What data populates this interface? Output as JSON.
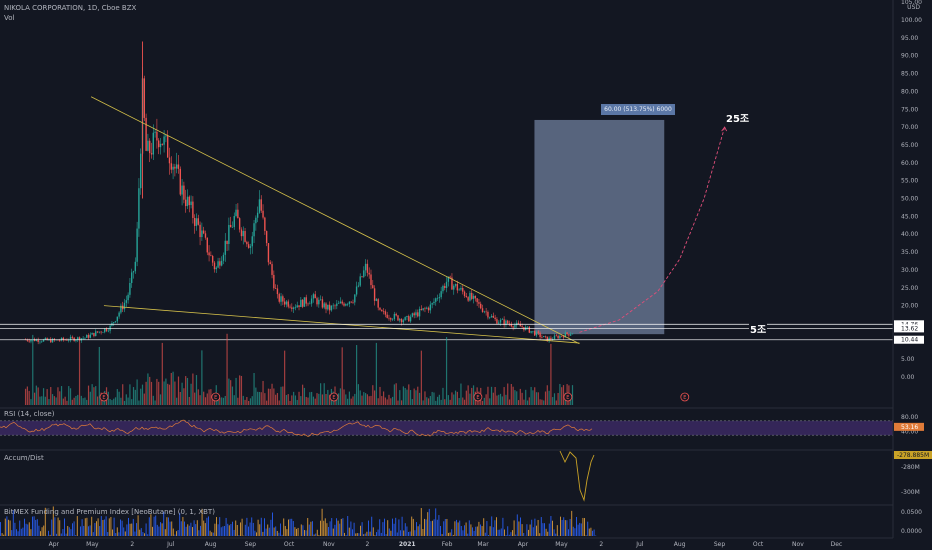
{
  "header": {
    "symbol_line": "NIKOLA CORPORATION, 1D, Cboe BZX",
    "vol_label": "Vol",
    "currency": "USD"
  },
  "annotations": {
    "target_box": "60.00 (513.75%) 6000",
    "label_25": "25조",
    "label_5": "5조",
    "earnings_marker": "E"
  },
  "panes": {
    "rsi": "RSI (14, close)",
    "accum": "Accum/Dist",
    "funding": "BitMEX Funding and Premium Index [NeoButane] (0, 1, XBT)"
  },
  "price_labels": {
    "p1": "14.76",
    "p2": "13.62",
    "p3": "10.44",
    "rsi_val": "53.16",
    "ad_val": "-278.885M"
  },
  "colors": {
    "background": "#131722",
    "up": "#26a69a",
    "down": "#ef5350",
    "trendline": "#d4c04a",
    "projection": "#e04e7a",
    "target_box": "#8fa4c8",
    "rsi_band": "#3d2a66",
    "accum_line": "#c9a227",
    "funding_bars": "#2962ff"
  },
  "chart_data": {
    "type": "candlestick",
    "title": "NIKOLA CORPORATION, 1D, Cboe BZX",
    "x_tick_labels": [
      "Apr",
      "May",
      "2",
      "Jul",
      "Aug",
      "Sep",
      "Oct",
      "Nov",
      "2",
      "2021",
      "Feb",
      "Mar",
      "Apr",
      "May",
      "2",
      "Jul",
      "Aug",
      "Sep",
      "Oct",
      "Nov",
      "Dec"
    ],
    "y_tick_labels": [
      "105.00",
      "100.00",
      "95.00",
      "90.00",
      "85.00",
      "80.00",
      "75.00",
      "70.00",
      "65.00",
      "60.00",
      "55.00",
      "50.00",
      "45.00",
      "40.00",
      "35.00",
      "30.00",
      "25.00",
      "20.00",
      "15.00",
      "10.00",
      "5.00",
      "0.00"
    ],
    "ylim": [
      0,
      105
    ],
    "price_path": [
      {
        "date": "2020-03-10",
        "close": 10.5
      },
      {
        "date": "2020-04-01",
        "close": 10.2
      },
      {
        "date": "2020-04-25",
        "close": 11.0
      },
      {
        "date": "2020-05-15",
        "close": 14.0
      },
      {
        "date": "2020-05-28",
        "close": 22.0
      },
      {
        "date": "2020-06-04",
        "close": 33.0
      },
      {
        "date": "2020-06-09",
        "close": 79.0
      },
      {
        "date": "2020-06-12",
        "close": 62.0
      },
      {
        "date": "2020-06-22",
        "close": 68.0
      },
      {
        "date": "2020-07-01",
        "close": 62.0
      },
      {
        "date": "2020-07-10",
        "close": 52.0
      },
      {
        "date": "2020-07-25",
        "close": 40.0
      },
      {
        "date": "2020-08-05",
        "close": 30.0
      },
      {
        "date": "2020-08-20",
        "close": 45.0
      },
      {
        "date": "2020-09-01",
        "close": 37.0
      },
      {
        "date": "2020-09-08",
        "close": 50.0
      },
      {
        "date": "2020-09-15",
        "close": 33.0
      },
      {
        "date": "2020-09-22",
        "close": 22.0
      },
      {
        "date": "2020-10-05",
        "close": 20.0
      },
      {
        "date": "2020-10-20",
        "close": 22.0
      },
      {
        "date": "2020-11-01",
        "close": 19.0
      },
      {
        "date": "2020-11-20",
        "close": 22.0
      },
      {
        "date": "2020-11-30",
        "close": 31.0
      },
      {
        "date": "2020-12-10",
        "close": 18.0
      },
      {
        "date": "2020-12-31",
        "close": 16.0
      },
      {
        "date": "2021-01-20",
        "close": 20.0
      },
      {
        "date": "2021-02-01",
        "close": 27.0
      },
      {
        "date": "2021-02-20",
        "close": 22.0
      },
      {
        "date": "2021-03-10",
        "close": 16.0
      },
      {
        "date": "2021-04-01",
        "close": 14.0
      },
      {
        "date": "2021-04-20",
        "close": 10.5
      },
      {
        "date": "2021-05-10",
        "close": 12.5
      }
    ],
    "upper_trendline": [
      {
        "date": "2020-04-30",
        "price": 78.5
      },
      {
        "date": "2021-05-15",
        "price": 11.0
      }
    ],
    "lower_trendline": [
      {
        "date": "2020-05-10",
        "price": 20.0
      },
      {
        "date": "2021-05-15",
        "price": 9.5
      }
    ],
    "projection_path": [
      {
        "date": "2021-05-15",
        "price": 12.5
      },
      {
        "date": "2021-06-15",
        "price": 16.0
      },
      {
        "date": "2021-07-15",
        "price": 24.0
      },
      {
        "date": "2021-08-01",
        "price": 33.0
      },
      {
        "date": "2021-08-20",
        "price": 50.0
      },
      {
        "date": "2021-09-05",
        "price": 70.0
      }
    ],
    "target_box": {
      "date_start": "2021-04-10",
      "date_end": "2021-07-20",
      "price_low": 12.0,
      "price_high": 72.0
    },
    "horizontal_levels": [
      14.76,
      13.62,
      10.44
    ],
    "earnings_dates": [
      "2020-05-10",
      "2020-08-05",
      "2020-11-05",
      "2021-02-25",
      "2021-05-06",
      "2021-08-05"
    ],
    "rsi_levels": [
      70,
      30
    ],
    "rsi_last": 53.16,
    "accum_ticks": [
      "-280M",
      "-300M"
    ],
    "funding_ticks": [
      "0.0500",
      "0.0000"
    ]
  }
}
